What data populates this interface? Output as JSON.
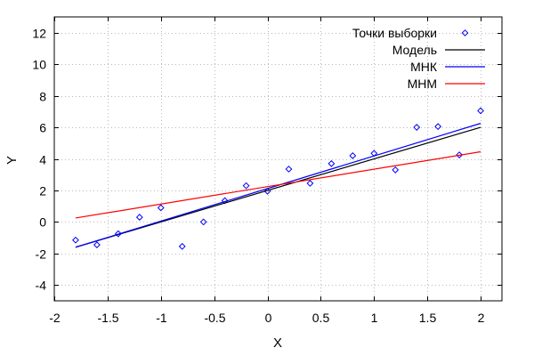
{
  "chart_data": {
    "type": "scatter",
    "title": "",
    "xlabel": "X",
    "ylabel": "Y",
    "xlim": [
      -2,
      2.2
    ],
    "ylim": [
      -5,
      13
    ],
    "x_ticks": [
      -2,
      -1.5,
      -1,
      -0.5,
      0,
      0.5,
      1,
      1.5,
      2
    ],
    "x_tick_labels": [
      "-2",
      "-1.5",
      "-1",
      "-0.5",
      "0",
      "0.5",
      "1",
      "1.5",
      "2"
    ],
    "y_ticks": [
      -4,
      -2,
      0,
      2,
      4,
      6,
      8,
      10,
      12
    ],
    "y_tick_labels": [
      "-4",
      "-2",
      "0",
      "2",
      "4",
      "6",
      "8",
      "10",
      "12"
    ],
    "grid": true,
    "legend_position": "top-right",
    "colors": {
      "points": "#0000ff",
      "model": "#000000",
      "mnk": "#0000ff",
      "mnm": "#ff0000"
    },
    "series": [
      {
        "name": "Точки выборки",
        "kind": "points",
        "x": [
          -1.8,
          -1.6,
          -1.4,
          -1.2,
          -1.0,
          -0.8,
          -0.6,
          -0.4,
          -0.2,
          0.0,
          0.2,
          0.4,
          0.6,
          0.8,
          1.0,
          1.2,
          1.4,
          1.6,
          1.8,
          2.0
        ],
        "y": [
          -1.15,
          -1.45,
          -0.75,
          0.3,
          0.9,
          -1.55,
          0.0,
          1.35,
          2.3,
          1.95,
          3.35,
          2.45,
          3.7,
          4.2,
          4.35,
          3.3,
          6.0,
          6.05,
          4.25,
          7.05
        ]
      },
      {
        "name": "Модель",
        "kind": "line",
        "x": [
          -1.8,
          2.0
        ],
        "y": [
          -1.6,
          6.0
        ]
      },
      {
        "name": "МНК",
        "kind": "line",
        "x": [
          -1.8,
          2.0
        ],
        "y": [
          -1.6,
          6.25
        ]
      },
      {
        "name": "МНМ",
        "kind": "line",
        "x": [
          -1.8,
          2.0
        ],
        "y": [
          0.25,
          4.45
        ]
      }
    ]
  }
}
